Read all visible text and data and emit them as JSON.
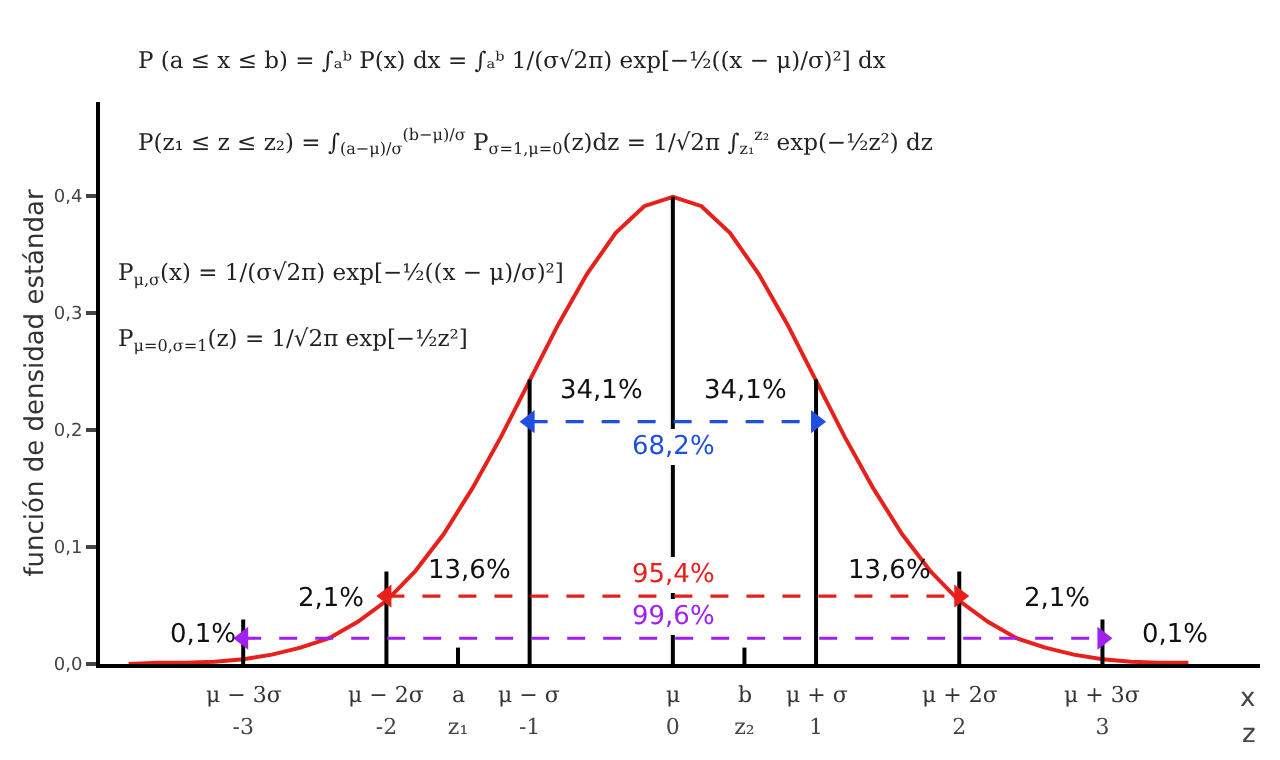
{
  "chart_data": {
    "type": "line",
    "ylabel": "función de densidad estándar",
    "xlabel": "z",
    "x2label": "x",
    "xlim": [
      -4,
      4.1
    ],
    "ylim": [
      0,
      0.48
    ],
    "xticks": [
      -3,
      -2,
      {
        "value": -1.5,
        "label": "z₁"
      },
      -1,
      0,
      {
        "value": 0.5,
        "label": "z₂"
      },
      1,
      2,
      3
    ],
    "x2lim": [
      -4,
      4.1
    ],
    "x2ticks": [
      {
        "value": -3,
        "label": "μ − 3σ"
      },
      {
        "value": -2,
        "label": "μ − 2σ"
      },
      {
        "value": -1.5,
        "label": "a"
      },
      {
        "value": -1,
        "label": "μ − σ"
      },
      {
        "value": 0,
        "label": "μ"
      },
      {
        "value": 0.5,
        "label": "b"
      },
      {
        "value": 1,
        "label": "μ + σ"
      },
      {
        "value": 2,
        "label": "μ + 2σ"
      },
      {
        "value": 3,
        "label": "μ + 3σ"
      }
    ],
    "yticks": [
      {
        "value": 0,
        "label": "0,0"
      },
      {
        "value": 0.1,
        "label": "0,1"
      },
      {
        "value": 0.2,
        "label": "0,2"
      },
      {
        "value": 0.3,
        "label": "0,3"
      },
      {
        "value": 0.4,
        "label": "0,4"
      }
    ],
    "marker": "none",
    "line_style": "solid",
    "series": [
      {
        "color": "#e8201c",
        "x": [
          -3.8,
          -3.6,
          -3.4,
          -3.2,
          -3,
          -2.8,
          -2.6,
          -2.4,
          -2.2,
          -2,
          -1.8,
          -1.6,
          -1.4,
          -1.2,
          -1,
          -0.8,
          -0.6,
          -0.4,
          -0.2,
          0,
          0.2,
          0.4,
          0.6,
          0.8,
          1,
          1.2,
          1.4,
          1.6,
          1.8,
          2,
          2.2,
          2.4,
          2.6,
          2.8,
          3,
          3.2,
          3.4,
          3.6
        ],
        "values": [
          0,
          0.001,
          0.001,
          0.002,
          0.004,
          0.008,
          0.014,
          0.022,
          0.036,
          0.054,
          0.079,
          0.111,
          0.15,
          0.194,
          0.242,
          0.29,
          0.333,
          0.368,
          0.391,
          0.399,
          0.391,
          0.368,
          0.333,
          0.29,
          0.242,
          0.194,
          0.15,
          0.111,
          0.079,
          0.054,
          0.036,
          0.022,
          0.014,
          0.008,
          0.004,
          0.002,
          0.001,
          0.001
        ]
      },
      {
        "color": "#000000",
        "x": [
          -3,
          -3
        ],
        "values": [
          0,
          0.038
        ]
      },
      {
        "color": "#000000",
        "x": [
          -2,
          -2
        ],
        "values": [
          0,
          0.079
        ]
      },
      {
        "color": "#000000",
        "x": [
          -1.5,
          -1.5
        ],
        "values": [
          0,
          0.014
        ]
      },
      {
        "color": "#000000",
        "x": [
          -1,
          -1
        ],
        "values": [
          0,
          0.243
        ]
      },
      {
        "color": "#000000",
        "x": [
          0,
          0
        ],
        "values": [
          0,
          0.399
        ]
      },
      {
        "color": "#000000",
        "x": [
          0.5,
          0.5
        ],
        "values": [
          0,
          0.014
        ]
      },
      {
        "color": "#000000",
        "x": [
          1,
          1
        ],
        "values": [
          0,
          0.243
        ]
      },
      {
        "color": "#000000",
        "x": [
          2,
          2
        ],
        "values": [
          0,
          0.079
        ]
      },
      {
        "color": "#000000",
        "x": [
          3,
          3
        ],
        "values": [
          0,
          0.038
        ]
      },
      {
        "name": "68,2%",
        "color": "#1f4fe0",
        "x": [
          -1,
          1
        ],
        "values": [
          0.207,
          0.207
        ],
        "line_style": "dashed",
        "marker": "triangle"
      },
      {
        "name": "95,4%",
        "color": "#e8201c",
        "x": [
          -2,
          2
        ],
        "values": [
          0.058,
          0.058
        ],
        "line_style": "dashed",
        "marker": "triangle"
      },
      {
        "name": "99,6%",
        "color": "#a020f0",
        "x": [
          -3,
          3
        ],
        "values": [
          0.022,
          0.022
        ],
        "line_style": "dashed",
        "marker": "triangle"
      }
    ],
    "annotations": [
      "P (a ≤ x ≤ b) = ∫ₐᵇ P(x) dx = ∫ₐᵇ 1/(σ√2π) exp[−½((x − μ)/σ)²] dx",
      "P(z₁ ≤ z ≤ z₂) = ∫$_{(a−μ)/σ}$$^{(b−μ)/σ}$ P$_{σ=1,μ=0}$(z)dz = 1/√2π ∫$_{z₁}$$^{z₂}$ exp(−½z²) dz",
      "P$_{μ,σ}$(x) = 1/(σ√2π) exp[−½((x − μ)/σ)²]",
      "P$_{μ=0,σ=1}$(z) = 1/√2π exp[−½z²]",
      "34,1%",
      "34,1%",
      "13,6%",
      "13,6%",
      "2,1%",
      "2,1%",
      "0,1%",
      "0,1%"
    ]
  }
}
